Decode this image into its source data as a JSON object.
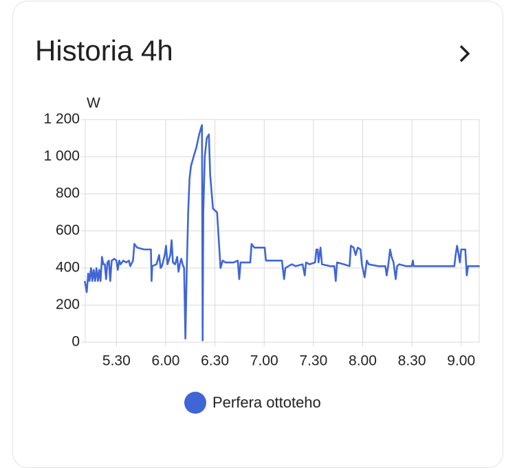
{
  "chart_data": {
    "type": "line",
    "title": "Historia 4h",
    "y_label": "W",
    "x": [
      310.7,
      311.9,
      312.8,
      313.6,
      314.5,
      315.3,
      316.1,
      317.0,
      317.8,
      318.7,
      319.5,
      320.3,
      321.2,
      322.0,
      322.9,
      323.7,
      324.5,
      325.4,
      326.2,
      327.1,
      328.7,
      330.0,
      330.8,
      331.7,
      332.5,
      334.2,
      335.9,
      337.6,
      338.4,
      340.1,
      340.9,
      342.6,
      346.8,
      351.0,
      351.4,
      351.8,
      354.4,
      356.0,
      356.9,
      357.7,
      359.4,
      360.2,
      361.1,
      362.8,
      363.6,
      364.4,
      365.7,
      367.0,
      367.8,
      368.6,
      369.5,
      370.3,
      371.2,
      372.0,
      372.8,
      373.7,
      374.5,
      375.4,
      377.0,
      378.7,
      380.4,
      381.7,
      382.1,
      382.5,
      382.9,
      383.8,
      385.0,
      386.3,
      387.1,
      388.8,
      391.3,
      392.2,
      393.4,
      394.7,
      396.4,
      401.4,
      403.9,
      404.8,
      405.6,
      409.8,
      411.5,
      412.3,
      414.0,
      420.3,
      421.1,
      430.8,
      432.1,
      432.9,
      436.7,
      439.2,
      443.4,
      444.7,
      445.5,
      447.6,
      451.0,
      451.8,
      452.6,
      453.1,
      454.3,
      455.2,
      460.2,
      462.7,
      463.6,
      464.4,
      468.6,
      472.0,
      472.8,
      474.5,
      475.7,
      477.0,
      478.7,
      479.5,
      481.2,
      482.5,
      483.7,
      489.6,
      493.8,
      494.6,
      495.5,
      496.7,
      497.6,
      498.8,
      500.1,
      501.0,
      502.2,
      506.4,
      509.8,
      510.6,
      511.0,
      535.8,
      536.6,
      537.5,
      538.3,
      539.2,
      540.0,
      542.5,
      543.4,
      544.2,
      548.4,
      551.3
    ],
    "series": [
      {
        "name": "Perfera ottoteho",
        "color": "#3f66d4",
        "values": [
          330,
          270,
          370,
          330,
          400,
          330,
          390,
          330,
          400,
          330,
          390,
          330,
          460,
          420,
          420,
          340,
          430,
          440,
          330,
          440,
          450,
          440,
          390,
          440,
          420,
          440,
          430,
          440,
          410,
          440,
          530,
          510,
          500,
          500,
          330,
          410,
          420,
          470,
          400,
          410,
          470,
          520,
          420,
          470,
          550,
          430,
          420,
          460,
          380,
          420,
          450,
          420,
          400,
          20,
          380,
          700,
          880,
          950,
          1000,
          1050,
          1120,
          1160,
          1170,
          10,
          700,
          1000,
          1100,
          1120,
          900,
          720,
          700,
          570,
          400,
          440,
          430,
          430,
          440,
          340,
          430,
          430,
          430,
          530,
          510,
          510,
          440,
          440,
          340,
          400,
          420,
          410,
          420,
          360,
          430,
          420,
          430,
          500,
          500,
          430,
          510,
          420,
          410,
          410,
          330,
          430,
          420,
          410,
          520,
          510,
          470,
          510,
          500,
          420,
          350,
          440,
          420,
          410,
          410,
          360,
          410,
          500,
          460,
          430,
          340,
          410,
          420,
          410,
          410,
          440,
          410,
          410,
          470,
          520,
          480,
          430,
          500,
          500,
          360,
          410,
          410,
          410
        ]
      }
    ],
    "xlim": [
      311,
      551
    ],
    "xticks": [
      {
        "value": 330,
        "label": "5.30"
      },
      {
        "value": 360,
        "label": "6.00"
      },
      {
        "value": 390,
        "label": "6.30"
      },
      {
        "value": 420,
        "label": "7.00"
      },
      {
        "value": 450,
        "label": "7.30"
      },
      {
        "value": 480,
        "label": "8.00"
      },
      {
        "value": 510,
        "label": "8.30"
      },
      {
        "value": 540,
        "label": "9.00"
      }
    ],
    "ylim": [
      0,
      1200
    ],
    "yticks": [
      0,
      200,
      400,
      600,
      800,
      {
        "value": 1000,
        "label": "1 000"
      },
      {
        "value": 1200,
        "label": "1 200"
      }
    ],
    "grid": true
  }
}
